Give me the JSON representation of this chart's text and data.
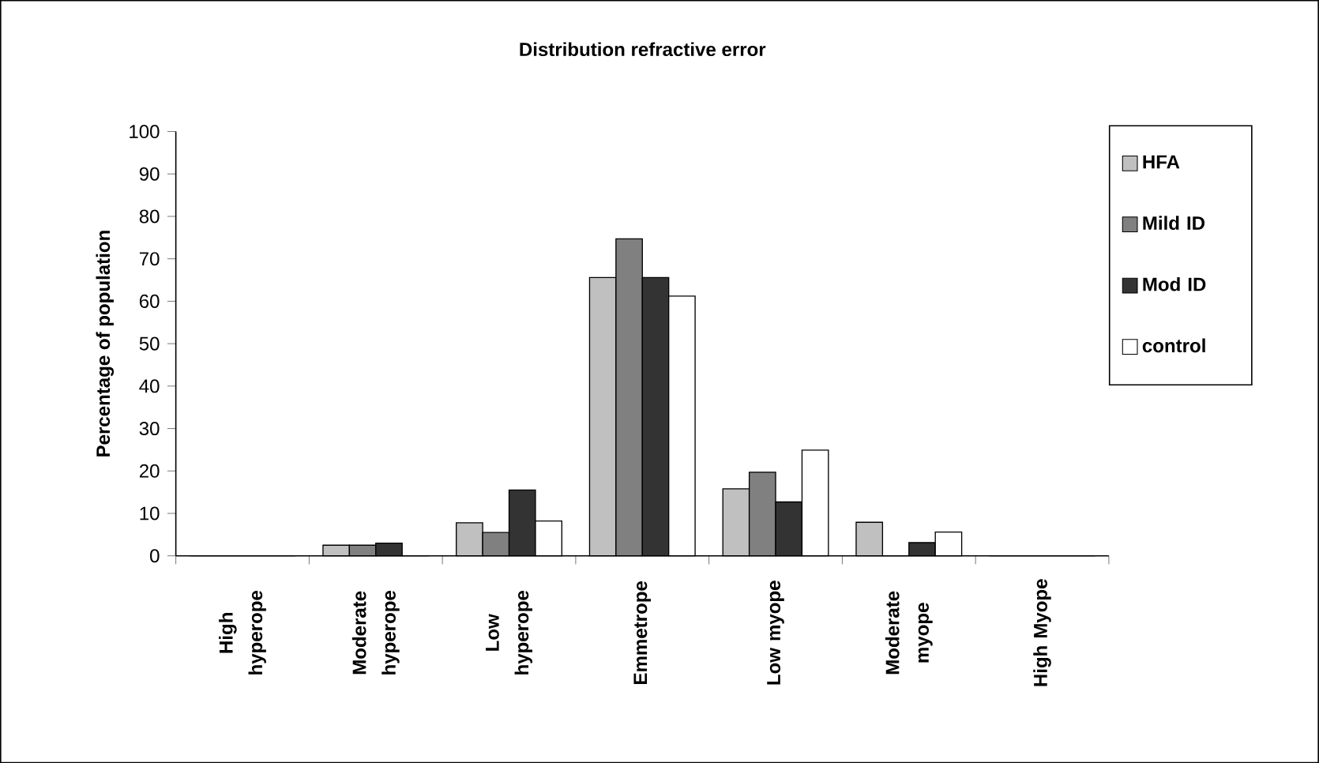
{
  "chart_data": {
    "type": "bar",
    "title": "Distribution refractive error",
    "ylabel": "Percentage of population",
    "categories": [
      "High hyperope",
      "Moderate hyperope",
      "Low hyperope",
      "Emmetrope",
      "Low myope",
      "Moderate myope",
      "High Myope"
    ],
    "series": [
      {
        "name": "HFA",
        "color": "#c0c0c0",
        "values": [
          0,
          2.5,
          7.8,
          65.6,
          15.8,
          7.9,
          0
        ]
      },
      {
        "name": "Mild ID",
        "color": "#808080",
        "values": [
          0,
          2.5,
          5.5,
          74.7,
          19.7,
          0,
          0
        ]
      },
      {
        "name": "Mod ID",
        "color": "#333333",
        "values": [
          0,
          3,
          15.5,
          65.6,
          12.7,
          3.1,
          0
        ]
      },
      {
        "name": "control",
        "color": "#ffffff",
        "values": [
          0,
          0,
          8.2,
          61.2,
          24.9,
          5.6,
          0
        ]
      }
    ],
    "ylim": [
      0,
      100
    ],
    "yticks": [
      0,
      10,
      20,
      30,
      40,
      50,
      60,
      70,
      80,
      90,
      100
    ],
    "legend": "right",
    "grid": false
  }
}
